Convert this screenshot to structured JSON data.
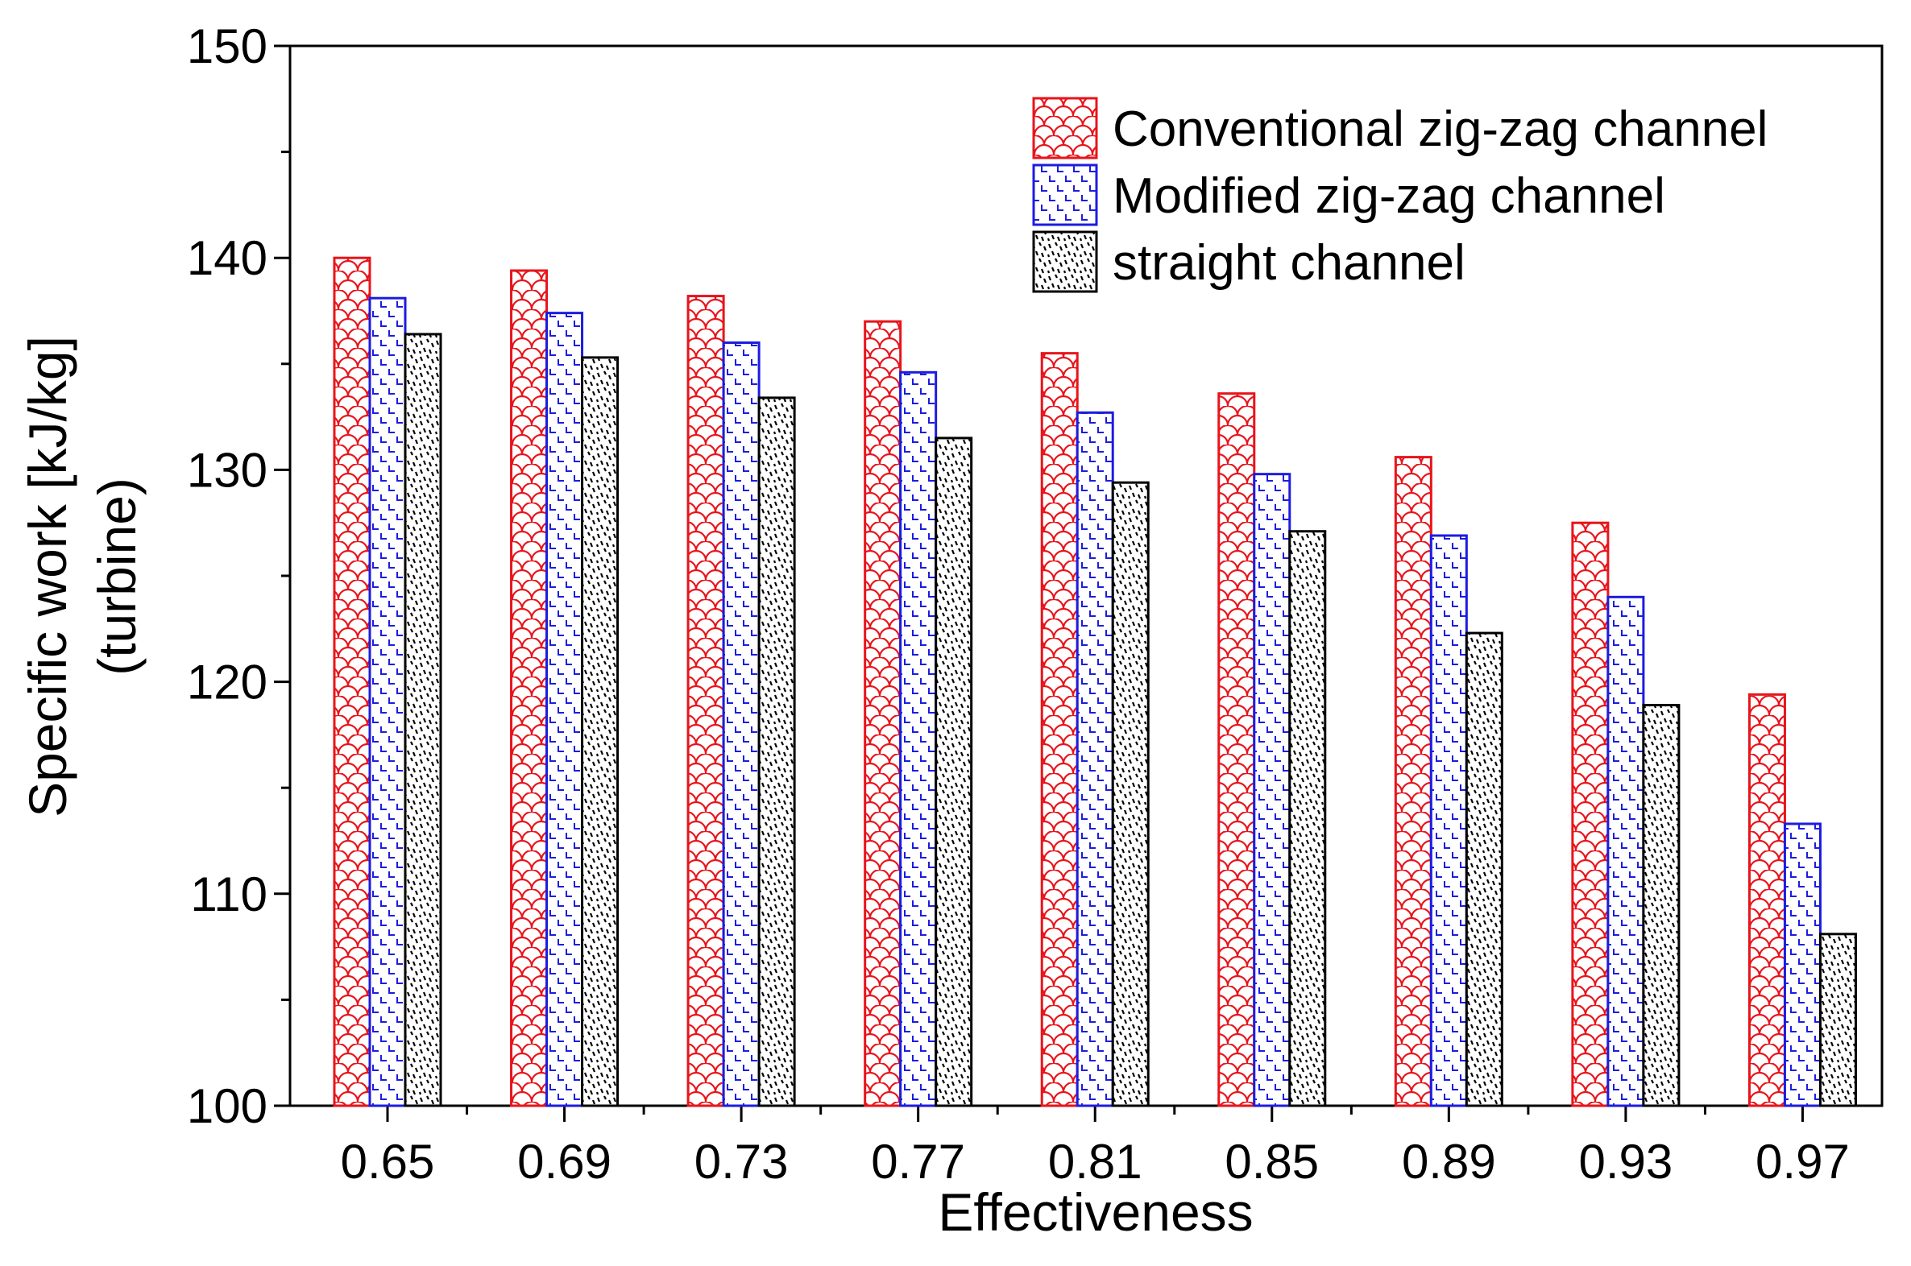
{
  "chart_data": {
    "type": "bar",
    "title": "",
    "xlabel": "Effectiveness",
    "ylabel_line1": "Specific work [kJ/kg]",
    "ylabel_line2": "(turbine)",
    "ylim": [
      100,
      150
    ],
    "yticks": [
      "100",
      "110",
      "120",
      "130",
      "140",
      "150"
    ],
    "grid": false,
    "legend_position": "top-right",
    "categories": [
      "0.65",
      "0.69",
      "0.73",
      "0.77",
      "0.81",
      "0.85",
      "0.89",
      "0.93",
      "0.97"
    ],
    "series": [
      {
        "name": "Conventional zig-zag channel",
        "color": "#e8141b",
        "pattern": "scales",
        "values": [
          140.0,
          139.4,
          138.2,
          137.0,
          135.5,
          133.6,
          130.6,
          127.5,
          119.4
        ]
      },
      {
        "name": "Modified zig-zag channel",
        "color": "#1c1ce0",
        "pattern": "steps",
        "values": [
          138.1,
          137.4,
          136.0,
          134.6,
          132.7,
          129.8,
          126.9,
          124.0,
          113.3
        ]
      },
      {
        "name": "straight channel",
        "color": "#000000",
        "pattern": "speckle",
        "values": [
          136.4,
          135.3,
          133.4,
          131.5,
          129.4,
          127.1,
          122.3,
          118.9,
          108.1
        ]
      }
    ]
  }
}
